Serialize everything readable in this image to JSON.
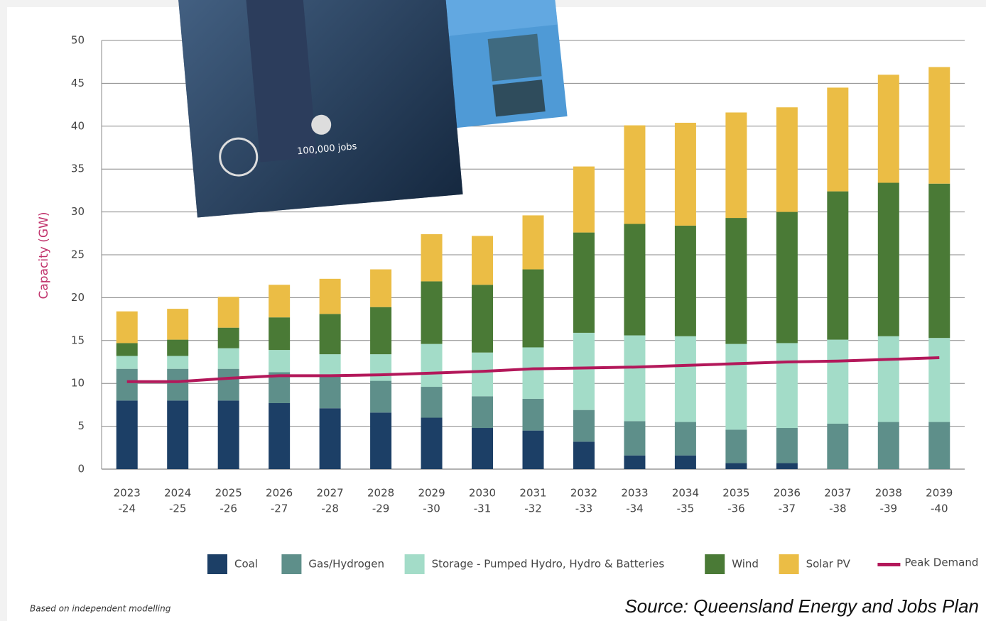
{
  "chart_data": {
    "type": "bar",
    "stacked": true,
    "y_label": "Capacity (GW)",
    "categories": [
      [
        "2023",
        "-24"
      ],
      [
        "2024",
        "-25"
      ],
      [
        "2025",
        "-26"
      ],
      [
        "2026",
        "-27"
      ],
      [
        "2027",
        "-28"
      ],
      [
        "2028",
        "-29"
      ],
      [
        "2029",
        "-30"
      ],
      [
        "2030",
        "-31"
      ],
      [
        "2031",
        "-32"
      ],
      [
        "2032",
        "-33"
      ],
      [
        "2033",
        "-34"
      ],
      [
        "2034",
        "-35"
      ],
      [
        "2035",
        "-36"
      ],
      [
        "2036",
        "-37"
      ],
      [
        "2037",
        "-38"
      ],
      [
        "2038",
        "-39"
      ],
      [
        "2039",
        "-40"
      ]
    ],
    "series": [
      {
        "name": "Coal",
        "color": "#1c3f66",
        "values": [
          8.0,
          8.0,
          8.0,
          7.7,
          7.1,
          6.6,
          6.0,
          4.8,
          4.5,
          3.2,
          1.6,
          1.6,
          0.7,
          0.7,
          0,
          0,
          0
        ]
      },
      {
        "name": "Gas/Hydrogen",
        "color": "#5e8f8a",
        "values": [
          3.7,
          3.7,
          3.7,
          3.6,
          3.7,
          3.7,
          3.6,
          3.7,
          3.7,
          3.7,
          4.0,
          3.9,
          3.9,
          4.1,
          5.3,
          5.5,
          5.5
        ]
      },
      {
        "name": "Storage - Pumped Hydro, Hydro & Batteries",
        "color": "#a3dcc8",
        "values": [
          1.5,
          1.5,
          2.4,
          2.6,
          2.6,
          3.1,
          5.0,
          5.1,
          6.0,
          9.0,
          10.0,
          10.0,
          10.0,
          9.9,
          9.8,
          10.0,
          9.8
        ]
      },
      {
        "name": "Wind",
        "color": "#4a7a36",
        "values": [
          1.5,
          1.9,
          2.4,
          3.8,
          4.7,
          5.5,
          7.3,
          7.9,
          9.1,
          11.7,
          13.0,
          12.9,
          14.7,
          15.3,
          17.3,
          17.9,
          18.0
        ]
      },
      {
        "name": "Solar PV",
        "color": "#ebbd45",
        "values": [
          3.7,
          3.6,
          3.6,
          3.8,
          4.1,
          4.4,
          5.5,
          5.7,
          6.3,
          7.7,
          11.5,
          12.0,
          12.3,
          12.2,
          12.1,
          12.6,
          13.6
        ]
      },
      {
        "name": "Peak Demand",
        "type": "line",
        "color": "#b3185a",
        "values": [
          10.2,
          10.2,
          10.6,
          10.9,
          10.9,
          11.0,
          11.2,
          11.4,
          11.7,
          11.8,
          11.9,
          12.1,
          12.3,
          12.5,
          12.6,
          12.8,
          13.0
        ]
      }
    ],
    "ylim": [
      0,
      50
    ],
    "yticks": [
      0,
      5,
      10,
      15,
      20,
      25,
      30,
      35,
      40,
      45,
      50
    ],
    "grid": true
  },
  "covers": {
    "jobs_text": "100,000 jobs"
  },
  "footnote": "Based on independent modelling",
  "source": "Source: Queensland Energy and Jobs Plan"
}
